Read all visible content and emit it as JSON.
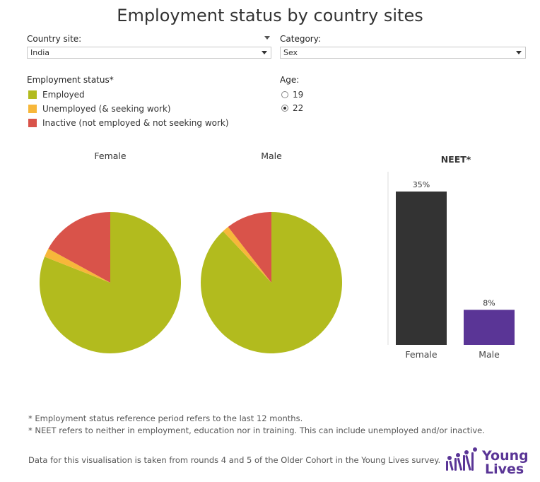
{
  "title": "Employment status by country sites",
  "filters": {
    "country_label": "Country site:",
    "country_value": "India",
    "category_label": "Category:",
    "category_value": "Sex"
  },
  "legend": {
    "title": "Employment status*",
    "items": [
      {
        "label": "Employed",
        "color": "#b2bb1e"
      },
      {
        "label": "Unemployed (& seeking work)",
        "color": "#f7b73a"
      },
      {
        "label": "Inactive (not employed & not seeking work)",
        "color": "#d9534a"
      }
    ]
  },
  "age": {
    "label": "Age:",
    "options": [
      {
        "label": "19",
        "selected": false
      },
      {
        "label": "22",
        "selected": true
      }
    ]
  },
  "chart_data": [
    {
      "type": "pie",
      "title": "Female",
      "series": [
        {
          "name": "Employed",
          "value": 81
        },
        {
          "name": "Unemployed (& seeking work)",
          "value": 2
        },
        {
          "name": "Inactive (not employed & not seeking work)",
          "value": 17
        }
      ]
    },
    {
      "type": "pie",
      "title": "Male",
      "series": [
        {
          "name": "Employed",
          "value": 88
        },
        {
          "name": "Unemployed (& seeking work)",
          "value": 1.5
        },
        {
          "name": "Inactive (not employed & not seeking work)",
          "value": 10.5
        }
      ]
    },
    {
      "type": "bar",
      "title": "NEET*",
      "categories": [
        "Female",
        "Male"
      ],
      "values": [
        35,
        8
      ],
      "value_labels": [
        "35%",
        "8%"
      ],
      "colors": [
        "#333333",
        "#5a3596"
      ],
      "ylim": [
        0,
        35
      ]
    }
  ],
  "notes": [
    "* Employment status reference period refers to the last 12 months.",
    "* NEET refers to neither in employment, education nor in training. This can include unemployed and/or inactive."
  ],
  "source": "Data for this visualisation is taken from rounds 4 and 5 of the Older Cohort in the Young Lives survey.",
  "logo": {
    "line1": "Young",
    "line2": "Lives",
    "color": "#5a3596"
  }
}
